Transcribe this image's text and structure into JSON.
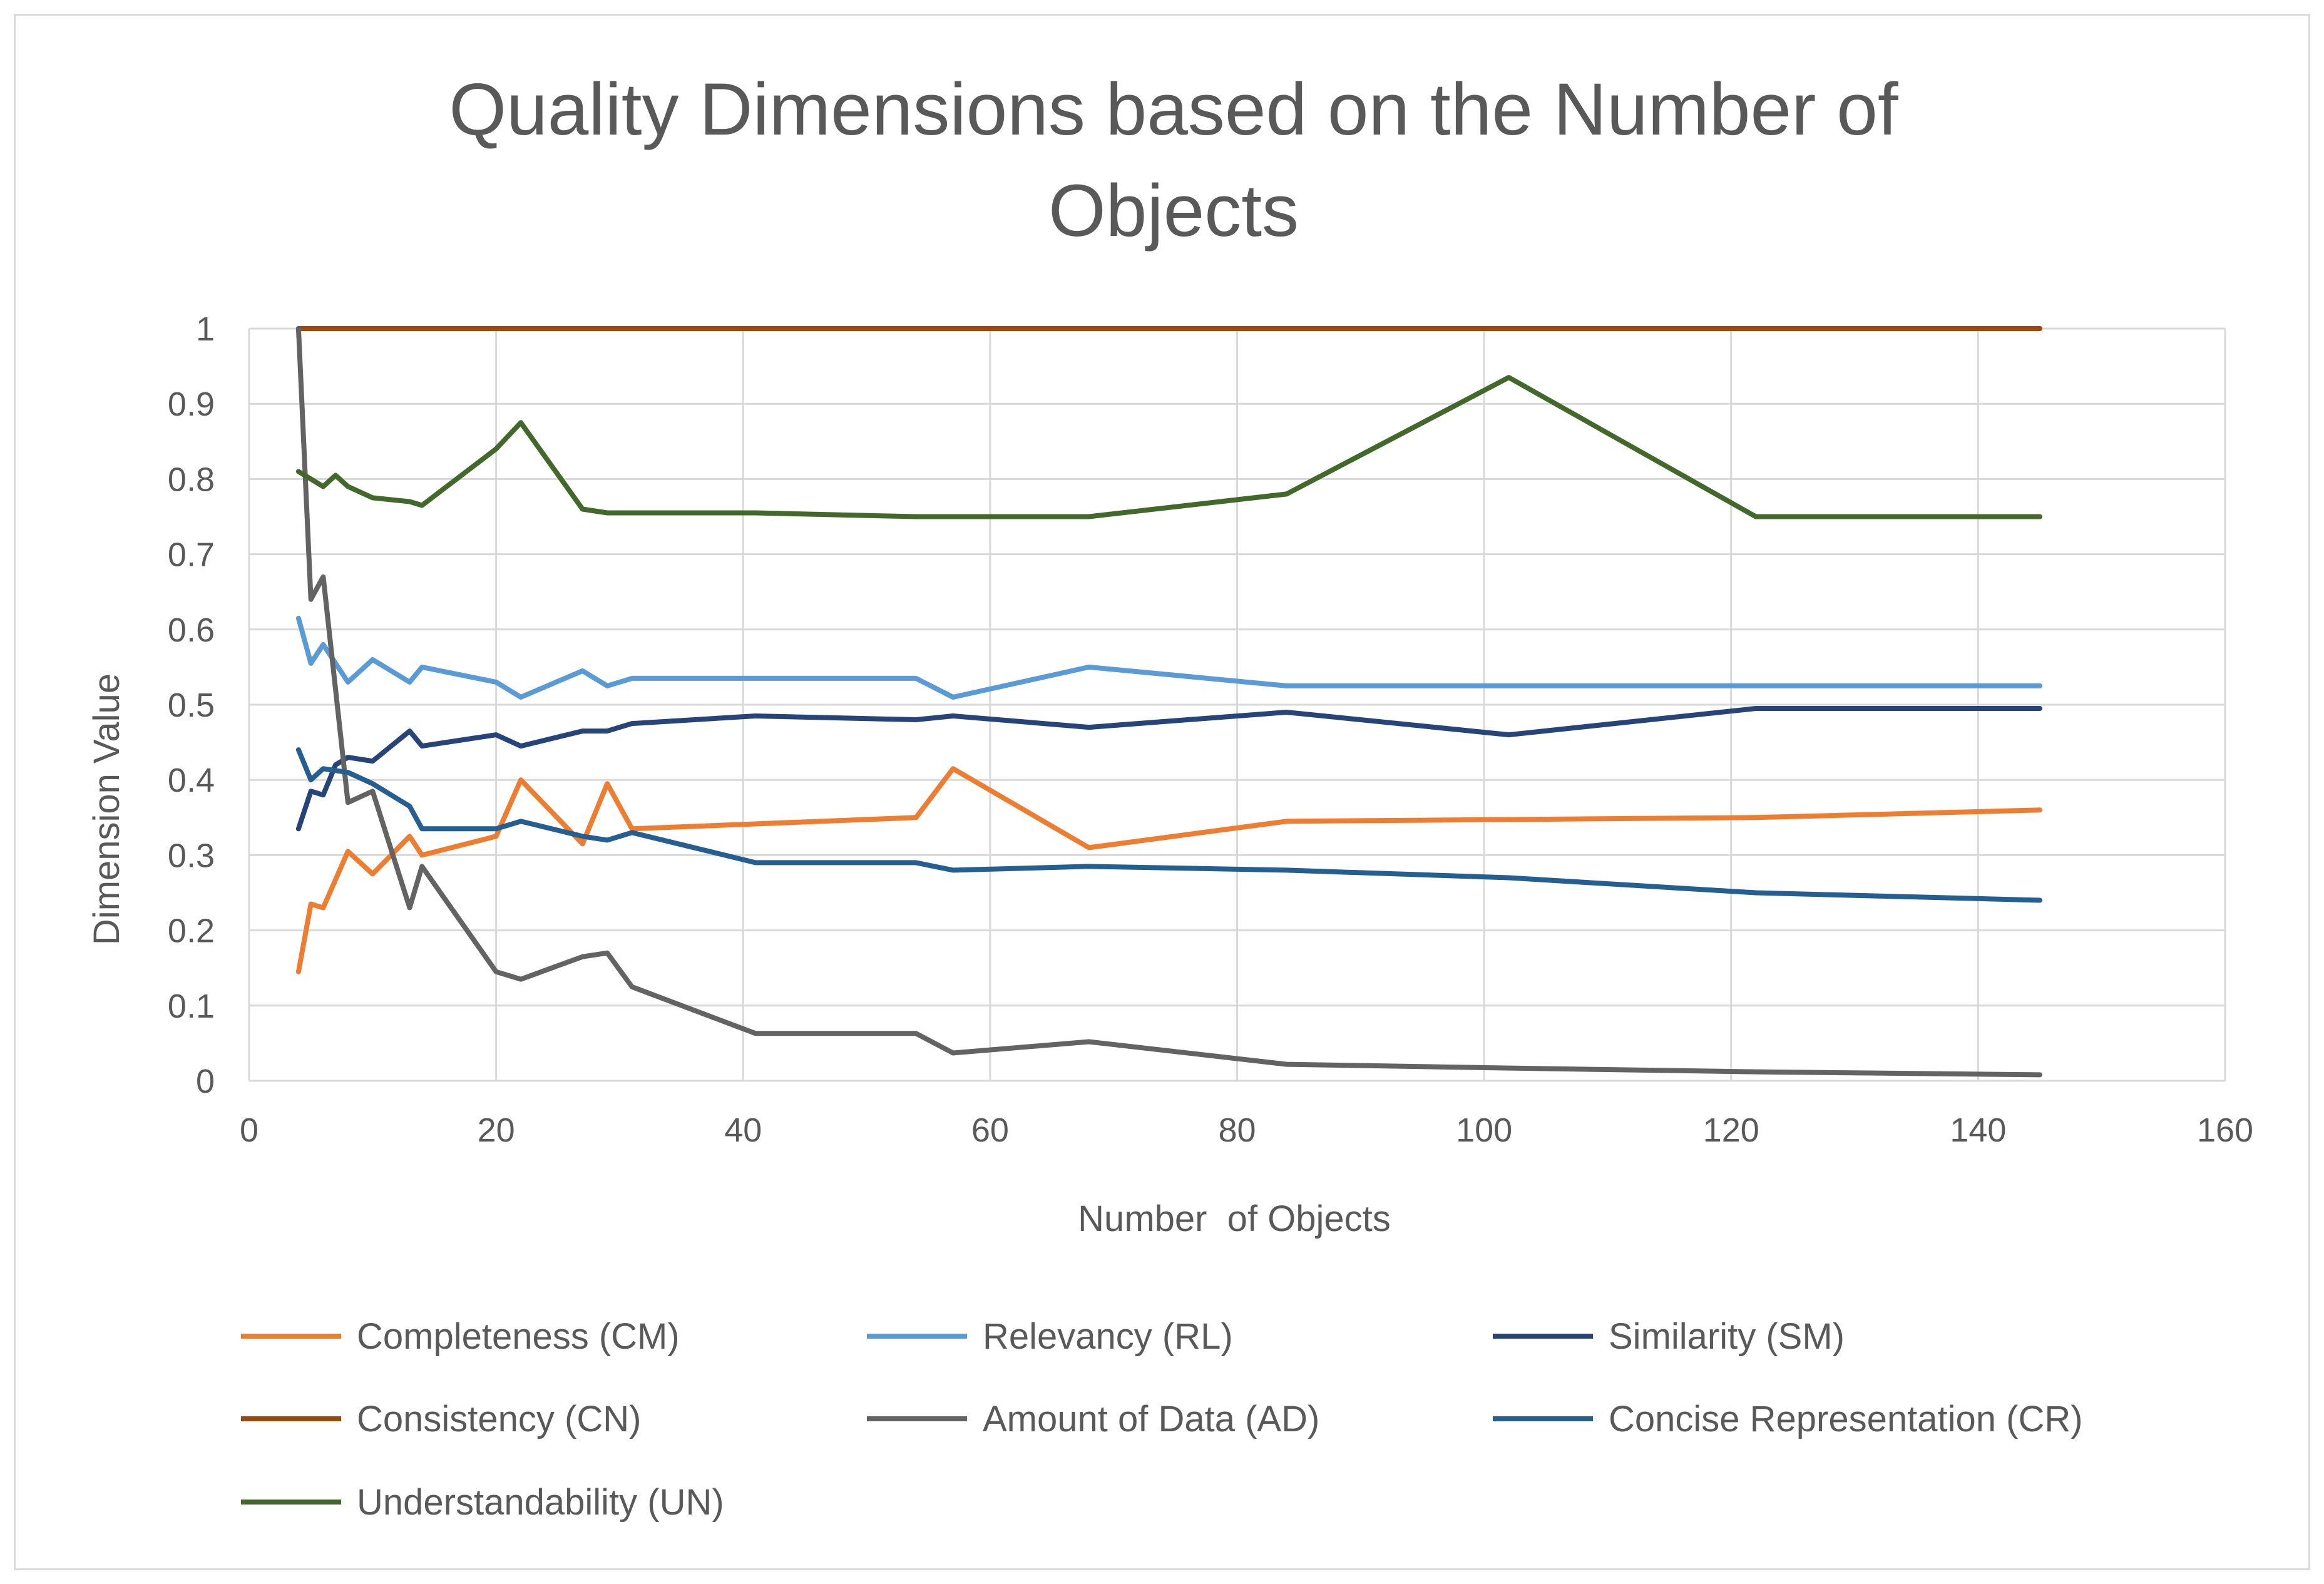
{
  "chart_data": {
    "type": "line",
    "title": "Quality Dimensions based on the Number of Objects",
    "title_lines": [
      "Quality Dimensions based on the Number of",
      "Objects"
    ],
    "xlabel": "Number  of Objects",
    "ylabel": "Dimension Value",
    "xlim": [
      0,
      160
    ],
    "ylim": [
      0,
      1
    ],
    "x_ticks": [
      0,
      20,
      40,
      60,
      80,
      100,
      120,
      140,
      160
    ],
    "y_ticks": [
      0,
      0.1,
      0.2,
      0.3,
      0.4,
      0.5,
      0.6,
      0.7,
      0.8,
      0.9,
      1
    ],
    "y_tick_labels": [
      "0",
      "0.1",
      "0.2",
      "0.3",
      "0.4",
      "0.5",
      "0.6",
      "0.7",
      "0.8",
      "0.9",
      "1"
    ],
    "grid": true,
    "legend_position": "bottom",
    "series": [
      {
        "name": "Completeness (CM)",
        "color": "#ED7D31",
        "x": [
          4,
          5,
          6,
          8,
          10,
          13,
          14,
          20,
          22,
          27,
          29,
          31,
          54,
          57,
          68,
          84,
          122,
          145
        ],
        "y": [
          0.145,
          0.235,
          0.23,
          0.305,
          0.275,
          0.325,
          0.3,
          0.325,
          0.4,
          0.315,
          0.395,
          0.335,
          0.35,
          0.415,
          0.31,
          0.345,
          0.35,
          0.36
        ]
      },
      {
        "name": "Relevancy (RL)",
        "color": "#5B9BD5",
        "x": [
          4,
          5,
          6,
          8,
          10,
          13,
          14,
          20,
          22,
          27,
          29,
          31,
          54,
          57,
          68,
          84,
          145
        ],
        "y": [
          0.615,
          0.555,
          0.58,
          0.53,
          0.56,
          0.53,
          0.55,
          0.53,
          0.51,
          0.545,
          0.525,
          0.535,
          0.535,
          0.51,
          0.55,
          0.525,
          0.525
        ]
      },
      {
        "name": "Similarity (SM)",
        "color": "#264478",
        "x": [
          4,
          5,
          6,
          7,
          8,
          10,
          13,
          14,
          20,
          22,
          27,
          29,
          31,
          41,
          54,
          57,
          68,
          84,
          102,
          122,
          145
        ],
        "y": [
          0.335,
          0.385,
          0.38,
          0.42,
          0.43,
          0.425,
          0.465,
          0.445,
          0.46,
          0.445,
          0.465,
          0.465,
          0.475,
          0.485,
          0.48,
          0.485,
          0.47,
          0.49,
          0.46,
          0.495,
          0.495
        ]
      },
      {
        "name": "Consistency (CN)",
        "color": "#9E480E",
        "x": [
          4,
          145
        ],
        "y": [
          1.0,
          1.0
        ]
      },
      {
        "name": "Amount of Data (AD)",
        "color": "#636363",
        "x": [
          4,
          5,
          6,
          8,
          10,
          13,
          14,
          20,
          22,
          27,
          29,
          31,
          41,
          54,
          57,
          68,
          84,
          102,
          122,
          145
        ],
        "y": [
          1.0,
          0.64,
          0.67,
          0.37,
          0.385,
          0.23,
          0.285,
          0.145,
          0.135,
          0.165,
          0.17,
          0.125,
          0.063,
          0.063,
          0.037,
          0.052,
          0.022,
          0.017,
          0.012,
          0.008
        ]
      },
      {
        "name": "Concise Representation (CR)",
        "color": "#255E91",
        "x": [
          4,
          5,
          6,
          8,
          10,
          13,
          14,
          20,
          22,
          27,
          29,
          31,
          41,
          54,
          57,
          68,
          84,
          102,
          122,
          145
        ],
        "y": [
          0.44,
          0.4,
          0.415,
          0.41,
          0.395,
          0.365,
          0.335,
          0.335,
          0.345,
          0.325,
          0.32,
          0.33,
          0.29,
          0.29,
          0.28,
          0.285,
          0.28,
          0.27,
          0.25,
          0.24
        ]
      },
      {
        "name": "Understandability (UN)",
        "color": "#43682B",
        "x": [
          4,
          5,
          6,
          7,
          8,
          10,
          13,
          14,
          20,
          22,
          27,
          29,
          31,
          41,
          54,
          57,
          68,
          84,
          102,
          122,
          145
        ],
        "y": [
          0.81,
          0.8,
          0.79,
          0.805,
          0.79,
          0.775,
          0.77,
          0.765,
          0.84,
          0.875,
          0.76,
          0.755,
          0.755,
          0.755,
          0.75,
          0.75,
          0.75,
          0.78,
          0.935,
          0.75,
          0.75
        ]
      }
    ]
  }
}
